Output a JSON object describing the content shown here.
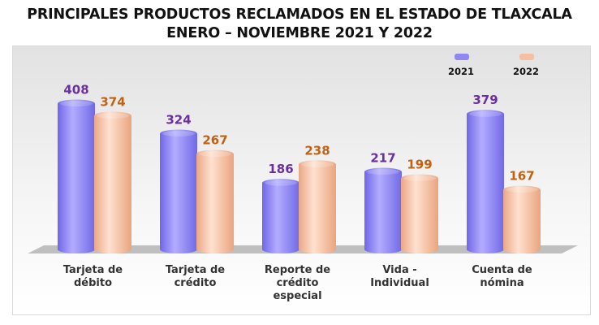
{
  "title_line1": "PRINCIPALES PRODUCTOS RECLAMADOS EN EL ESTADO DE TLAXCALA",
  "title_line2": "ENERO – NOVIEMBRE 2021 Y 2022",
  "colors": {
    "series_2021": "#8f87f2",
    "series_2021_label": "#6b2fa0",
    "series_2022": "#f5bfa0",
    "series_2022_label": "#c2610f"
  },
  "chart_data": {
    "type": "bar",
    "title": "PRINCIPALES PRODUCTOS RECLAMADOS EN EL ESTADO DE TLAXCALA ENERO – NOVIEMBRE 2021 Y 2022",
    "legend_position": "top-right",
    "categories": [
      [
        "Tarjeta de",
        "débito"
      ],
      [
        "Tarjeta de",
        "crédito"
      ],
      [
        "Reporte de",
        "crédito",
        "especial"
      ],
      [
        "Vida -",
        "Individual"
      ],
      [
        "Cuenta de",
        "nómina"
      ]
    ],
    "series": [
      {
        "name": "2021",
        "values": [
          408,
          324,
          186,
          217,
          379
        ]
      },
      {
        "name": "2022",
        "values": [
          374,
          267,
          238,
          199,
          167
        ]
      }
    ],
    "ylim": [
      0,
      450
    ],
    "grid": false,
    "xlabel": "",
    "ylabel": ""
  }
}
